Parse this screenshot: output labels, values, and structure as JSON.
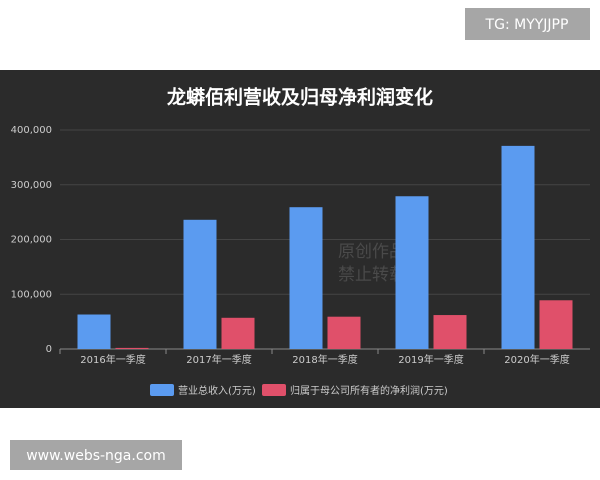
{
  "header": {
    "tag": "TG: MYYJJPP"
  },
  "footer": {
    "site": "www.webs-nga.com"
  },
  "watermark": {
    "line1": "原创作品",
    "line2": "禁止转载"
  },
  "chart_data": {
    "type": "bar",
    "title": "龙蟒佰利营收及归母净利润变化",
    "categories": [
      "2016年一季度",
      "2017年一季度",
      "2018年一季度",
      "2019年一季度",
      "2020年一季度"
    ],
    "series": [
      {
        "name": "营业总收入(万元)",
        "color": "#5b9bf0",
        "values": [
          63000,
          236000,
          259000,
          279000,
          371000
        ]
      },
      {
        "name": "归属于母公司所有者的净利润(万元)",
        "color": "#e0506a",
        "values": [
          2000,
          57000,
          59000,
          62000,
          89000
        ]
      }
    ],
    "ylim": [
      0,
      400000
    ],
    "yticks": [
      0,
      {
        "value": 100000,
        "label": "100,000"
      },
      {
        "value": 200000,
        "label": "200,000"
      },
      {
        "value": 300000,
        "label": "300,000"
      },
      {
        "value": 400000,
        "label": "400,000"
      }
    ],
    "grid": true,
    "legend": "bottom"
  }
}
